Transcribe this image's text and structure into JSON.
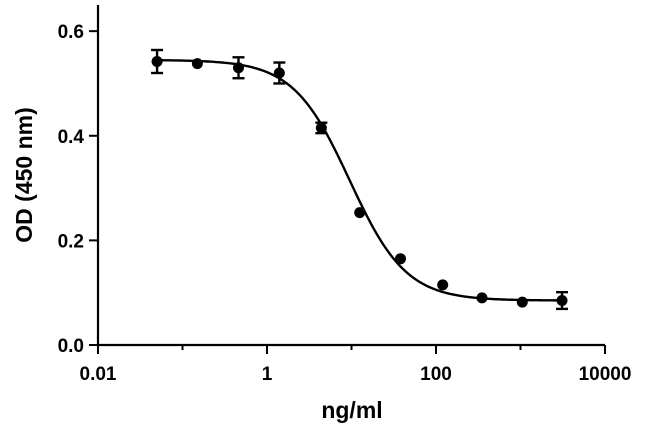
{
  "chart_data": {
    "type": "scatter",
    "title": "",
    "xlabel": "ng/ml",
    "ylabel": "OD (450 nm)",
    "xscale": "log",
    "xlim": [
      0.01,
      10000
    ],
    "ylim": [
      0.0,
      0.65
    ],
    "x_ticks": [
      0.01,
      1,
      100,
      10000
    ],
    "x_tick_labels": [
      "0.01",
      "1",
      "100",
      "10000"
    ],
    "y_ticks": [
      0.0,
      0.2,
      0.4,
      0.6
    ],
    "y_tick_labels": [
      "0.0",
      "0.2",
      "0.4",
      "0.6"
    ],
    "grid": false,
    "legend": "none",
    "series": [
      {
        "x": [
          0.05,
          0.15,
          0.46,
          1.4,
          4.4,
          12.5,
          38,
          120,
          350,
          1050,
          3100
        ],
        "y": [
          0.542,
          0.538,
          0.53,
          0.52,
          0.415,
          0.253,
          0.165,
          0.115,
          0.09,
          0.082,
          0.085
        ],
        "error": [
          0.022,
          0.004,
          0.02,
          0.02,
          0.01,
          0.004,
          0.004,
          0.004,
          0.004,
          0.004,
          0.016
        ],
        "fit": {
          "model": "4PL",
          "top": 0.545,
          "bottom": 0.085,
          "ec50": 9.5,
          "hill": 1.3
        }
      }
    ]
  }
}
